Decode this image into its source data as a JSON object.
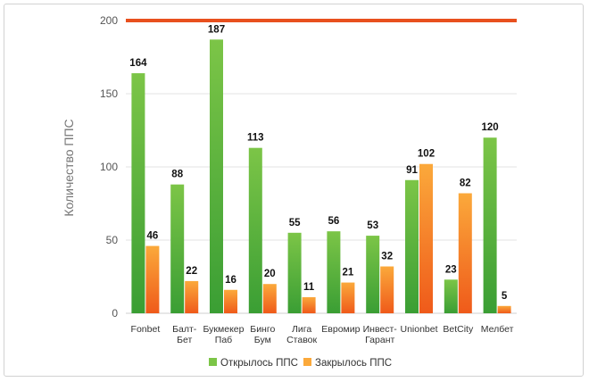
{
  "chart_data": {
    "type": "bar",
    "ylabel": "Количество ППС",
    "xlabel": "",
    "ylim": [
      0,
      200
    ],
    "yticks": [
      0,
      50,
      100,
      150,
      200
    ],
    "grid": true,
    "legend_position": "bottom",
    "categories": [
      [
        "Fonbet"
      ],
      [
        "Балт-",
        "Бет"
      ],
      [
        "Букмекер",
        "Паб"
      ],
      [
        "Бинго",
        "Бум"
      ],
      [
        "Лига",
        "Ставок"
      ],
      [
        "Евромир"
      ],
      [
        "Инвест-",
        "Гарант"
      ],
      [
        "Unionbet"
      ],
      [
        "BetCity"
      ],
      [
        "Мелбет"
      ]
    ],
    "series": [
      {
        "name": "Открылось ППС",
        "values": [
          164,
          88,
          187,
          113,
          55,
          56,
          53,
          91,
          23,
          120
        ],
        "color_top": "#7cc547",
        "color_bottom": "#3a9e34"
      },
      {
        "name": "Закрылось ППС",
        "values": [
          46,
          22,
          16,
          20,
          11,
          21,
          32,
          102,
          82,
          5
        ],
        "color_top": "#fba93b",
        "color_bottom": "#ef5a1a"
      }
    ],
    "reference_line": {
      "value": 200,
      "color": "#e8501e"
    }
  }
}
